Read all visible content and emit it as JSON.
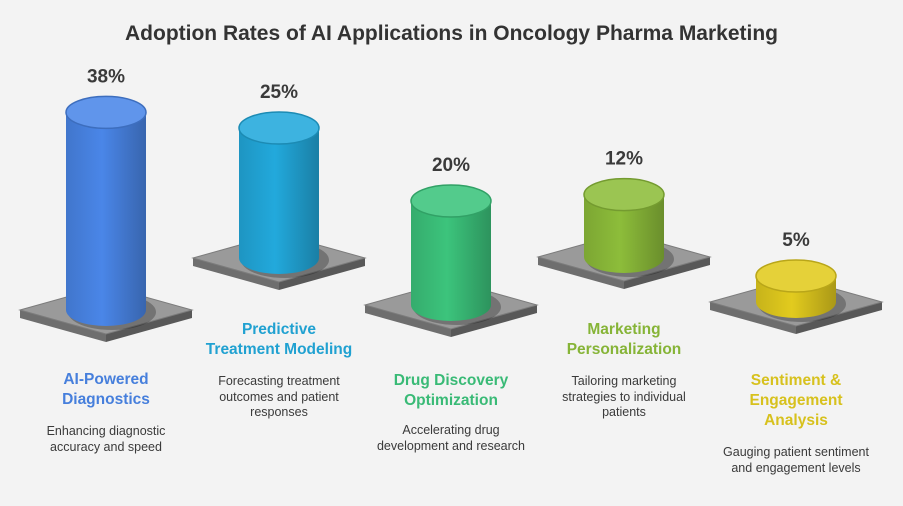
{
  "chart_data": {
    "type": "bar",
    "title": "Adoption Rates of AI Applications in Oncology Pharma Marketing",
    "categories": [
      "AI-Powered Diagnostics",
      "Predictive Treatment Modeling",
      "Drug Discovery Optimization",
      "Marketing Personalization",
      "Sentiment & Engagement Analysis"
    ],
    "values": [
      38,
      25,
      20,
      12,
      5
    ],
    "value_labels": [
      "38%",
      "25%",
      "20%",
      "12%",
      "5%"
    ],
    "descriptions": [
      "Enhancing diagnostic accuracy and speed",
      "Forecasting treatment outcomes and patient responses",
      "Accelerating drug development and research",
      "Tailoring marketing strategies to individual patients",
      "Gauging patient sentiment and engagement levels"
    ],
    "colors": [
      "#4a86e8",
      "#22a9dc",
      "#3cc47c",
      "#8dbd3a",
      "#e2cb1e"
    ]
  }
}
